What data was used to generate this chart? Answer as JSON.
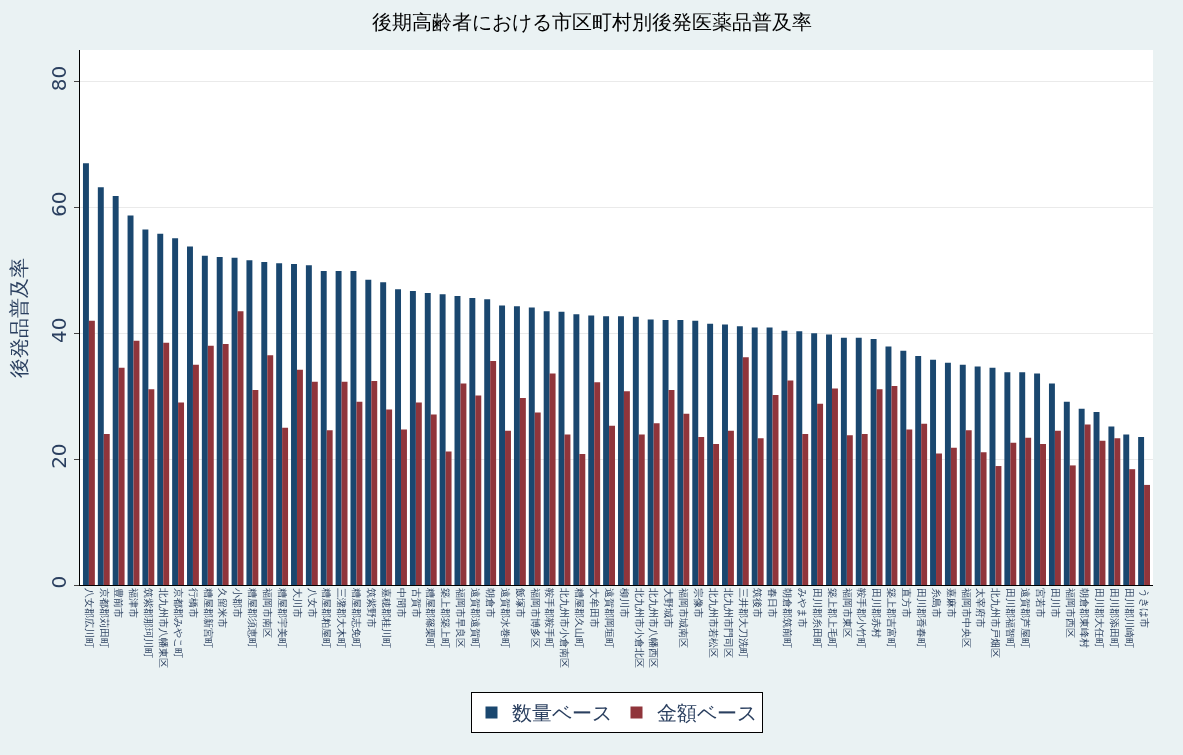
{
  "chart_data": {
    "type": "bar",
    "title": "後期高齢者における市区町村別後発医薬品普及率",
    "ylabel": "後発品普及率",
    "categories": [
      "八女郡広川町",
      "京都郡苅田町",
      "豊前市",
      "福津市",
      "筑紫郡那珂川町",
      "北九州市八幡東区",
      "京都郡みやこ町",
      "行橋市",
      "糟屋郡新宮町",
      "久留米市",
      "小郡市",
      "糟屋郡須恵町",
      "福岡市南区",
      "糟屋郡宇美町",
      "大川市",
      "八女市",
      "糟屋郡粕屋町",
      "三潴郡大木町",
      "糟屋郡志免町",
      "筑紫野市",
      "嘉穂郡桂川町",
      "中間市",
      "古賀市",
      "糟屋郡篠栗町",
      "築上郡築上町",
      "福岡市早良区",
      "遠賀郡遠賀町",
      "朝倉市",
      "遠賀郡水巻町",
      "飯塚市",
      "福岡市博多区",
      "鞍手郡鞍手町",
      "北九州市小倉南区",
      "糟屋郡久山町",
      "大牟田市",
      "遠賀郡岡垣町",
      "柳川市",
      "北九州市小倉北区",
      "北九州市八幡西区",
      "大野城市",
      "福岡市城南区",
      "宗像市",
      "北九州市若松区",
      "北九州市門司区",
      "三井郡大刀洗町",
      "筑後市",
      "春日市",
      "朝倉郡筑前町",
      "みやま市",
      "田川郡糸田町",
      "築上郡上毛町",
      "福岡市東区",
      "鞍手郡小竹町",
      "田川郡赤村",
      "築上郡吉富町",
      "直方市",
      "田川郡香春町",
      "糸島市",
      "嘉麻市",
      "福岡市中央区",
      "太宰府市",
      "北九州市戸畑区",
      "田川郡福智町",
      "遠賀郡芦屋町",
      "宮若市",
      "田川市",
      "福岡市西区",
      "朝倉郡東峰村",
      "田川郡大任町",
      "田川郡添田町",
      "田川郡川崎町",
      "うきは市"
    ],
    "series": [
      {
        "name": "数量ベース",
        "color": "#1a476f",
        "values": [
          67.0,
          63.2,
          61.8,
          58.7,
          56.5,
          55.8,
          55.1,
          53.8,
          52.3,
          52.1,
          52.0,
          51.6,
          51.3,
          51.1,
          51.0,
          50.8,
          49.9,
          49.9,
          49.9,
          48.5,
          48.1,
          47.0,
          46.7,
          46.4,
          46.2,
          45.9,
          45.6,
          45.4,
          44.4,
          44.3,
          44.1,
          43.5,
          43.4,
          43.0,
          42.8,
          42.7,
          42.7,
          42.6,
          42.2,
          42.1,
          42.1,
          42.0,
          41.5,
          41.4,
          41.1,
          40.9,
          40.9,
          40.4,
          40.3,
          40.0,
          39.8,
          39.3,
          39.3,
          39.1,
          37.9,
          37.2,
          36.4,
          35.8,
          35.3,
          35.0,
          34.7,
          34.5,
          33.8,
          33.8,
          33.6,
          32.0,
          29.1,
          28.0,
          27.5,
          25.2,
          23.9,
          23.5
        ]
      },
      {
        "name": "金額ベース",
        "color": "#90353b",
        "values": [
          42.0,
          24.0,
          34.5,
          38.8,
          31.1,
          38.5,
          29.0,
          35.0,
          38.0,
          38.3,
          43.5,
          31.0,
          36.5,
          25.0,
          34.2,
          32.3,
          24.6,
          32.3,
          29.1,
          32.4,
          27.9,
          24.7,
          29.0,
          27.1,
          21.2,
          32.0,
          30.1,
          35.6,
          24.5,
          29.7,
          27.4,
          33.6,
          23.9,
          20.8,
          32.2,
          25.3,
          30.8,
          23.9,
          25.7,
          31.0,
          27.2,
          23.5,
          22.4,
          24.5,
          36.2,
          23.3,
          30.2,
          32.5,
          24.0,
          28.8,
          31.2,
          23.8,
          24.0,
          31.1,
          31.6,
          24.7,
          25.6,
          20.9,
          21.8,
          24.6,
          21.1,
          18.9,
          22.6,
          23.4,
          22.4,
          24.5,
          19.0,
          25.5,
          22.9,
          23.3,
          18.4,
          15.9
        ]
      }
    ],
    "ylim": [
      0,
      85
    ],
    "yticks": [
      0,
      20,
      40,
      60,
      80
    ],
    "grid": "y",
    "legend": "bottom"
  }
}
